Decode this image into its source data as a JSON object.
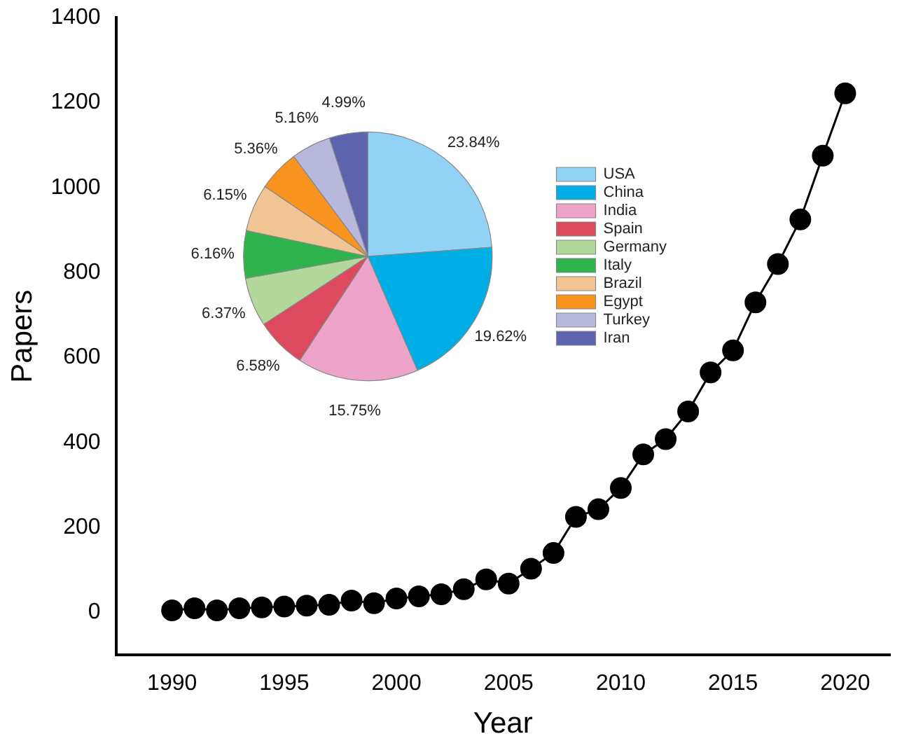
{
  "chart_data": [
    {
      "type": "line",
      "xlabel": "Year",
      "ylabel": "Papers",
      "x": [
        1990,
        1991,
        1992,
        1993,
        1994,
        1995,
        1996,
        1997,
        1998,
        1999,
        2000,
        2001,
        2002,
        2003,
        2004,
        2005,
        2006,
        2007,
        2008,
        2009,
        2010,
        2011,
        2012,
        2013,
        2014,
        2015,
        2016,
        2017,
        2018,
        2019,
        2020
      ],
      "series": [
        {
          "color": "#000000",
          "values": [
            5,
            10,
            5,
            10,
            12,
            14,
            16,
            18,
            28,
            22,
            33,
            38,
            43,
            55,
            78,
            68,
            103,
            140,
            225,
            243,
            293,
            372,
            408,
            473,
            565,
            617,
            730,
            820,
            925,
            1075,
            1222
          ]
        }
      ],
      "xlim": [
        1987.5,
        2022
      ],
      "xticks": [
        1990,
        1995,
        2000,
        2005,
        2010,
        2015,
        2020
      ],
      "ylim": [
        -100,
        1400
      ],
      "yticks": [
        0,
        200,
        400,
        600,
        800,
        1000,
        1200,
        1400
      ],
      "marker": "circle",
      "line_style": "solid",
      "grid": false,
      "legend": false
    },
    {
      "type": "pie",
      "categories": [
        "USA",
        "China",
        "India",
        "Spain",
        "Germany",
        "Italy",
        "Brazil",
        "Egypt",
        "Turkey",
        "Iran"
      ],
      "values": [
        23.84,
        19.62,
        15.75,
        6.58,
        6.37,
        6.16,
        6.15,
        5.36,
        5.16,
        4.99
      ],
      "colors": [
        "#92d3f5",
        "#00aee6",
        "#eea3c8",
        "#dd4a5d",
        "#b3d89b",
        "#2fb34d",
        "#f1c494",
        "#f7931e",
        "#b8b8dc",
        "#5d64ae"
      ],
      "value_labels": [
        "23.84%",
        "19.62%",
        "15.75%",
        "6.58%",
        "6.37%",
        "6.16%",
        "6.15%",
        "5.36%",
        "5.16%",
        "4.99%"
      ],
      "legend": "right"
    }
  ]
}
